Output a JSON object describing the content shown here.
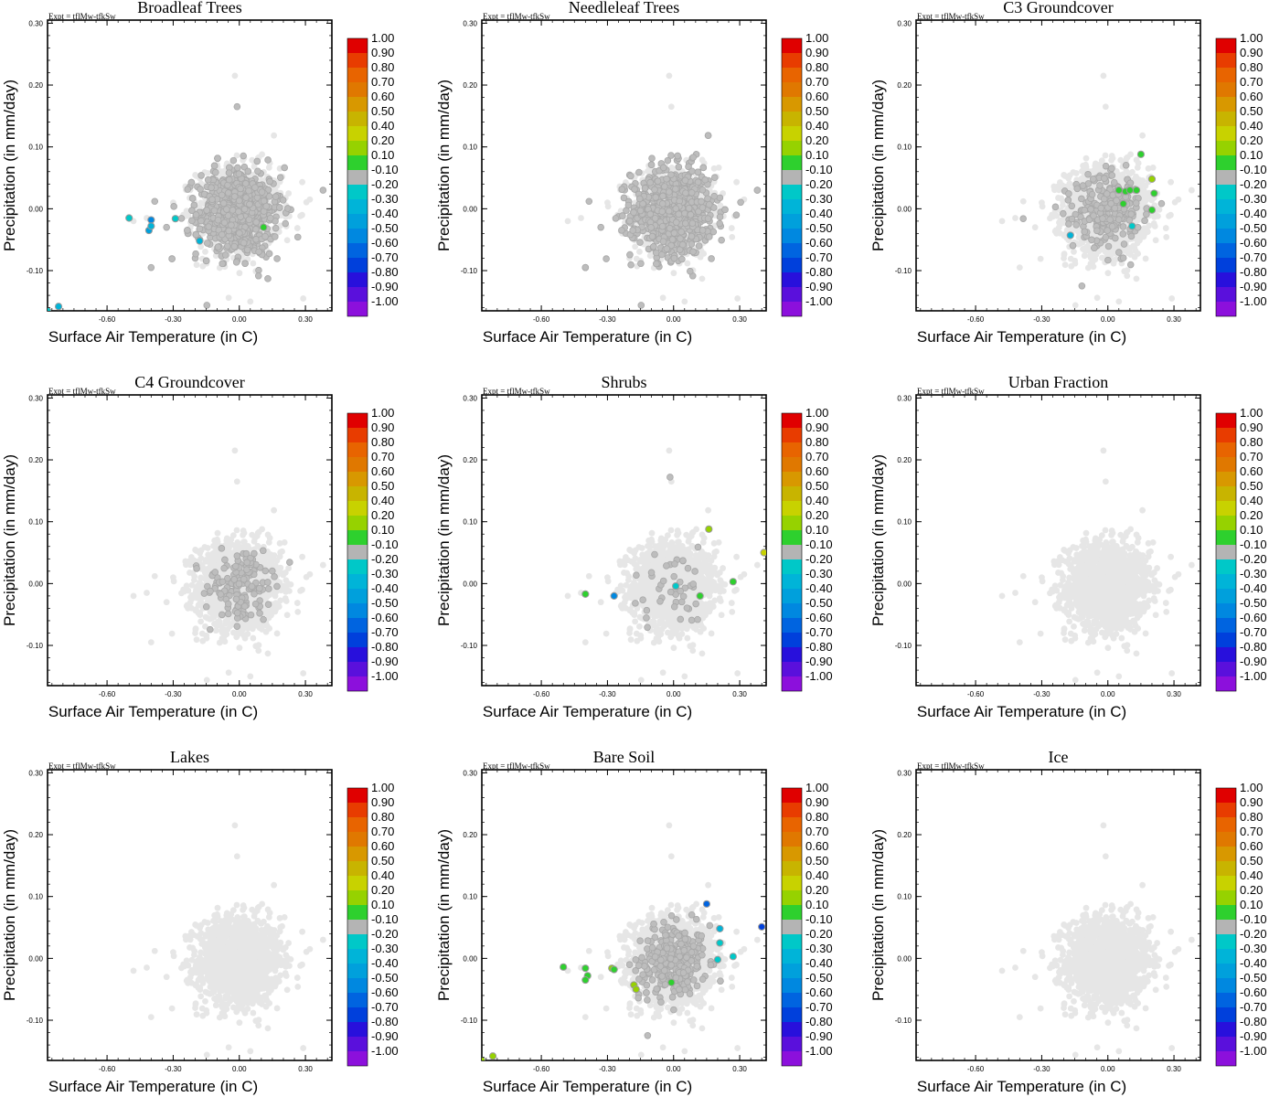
{
  "figure": {
    "expt_label": "Expt = tflMw-tfkSw",
    "xlabel": "Surface Air Temperature (in C)",
    "ylabel": "Precipitation (in mm/day)"
  },
  "colorbar": {
    "labels": [
      "1.00",
      "0.90",
      "0.80",
      "0.70",
      "0.60",
      "0.50",
      "0.40",
      "0.20",
      "0.10",
      "-0.10",
      "-0.20",
      "-0.30",
      "-0.40",
      "-0.50",
      "-0.60",
      "-0.70",
      "-0.80",
      "-0.90",
      "-1.00"
    ],
    "colors": [
      "#e00000",
      "#e83c00",
      "#e86400",
      "#e07800",
      "#d89800",
      "#c8b400",
      "#c8d200",
      "#96d200",
      "#2ed02e",
      "#b4b4b4",
      "#00c8c8",
      "#00b4d8",
      "#00a0dc",
      "#0088e0",
      "#0064e0",
      "#0040dc",
      "#2810dc",
      "#5a10dc",
      "#8c10dc"
    ]
  },
  "chart_data": [
    {
      "type": "scatter",
      "title": "Broadleaf Trees",
      "xlabel": "Surface Air Temperature (in C)",
      "ylabel": "Precipitation (in mm/day)",
      "xlim": [
        -0.87,
        0.42
      ],
      "ylim": [
        -0.165,
        0.305
      ],
      "xticks": [
        "-0.60",
        "-0.30",
        "0.00",
        "0.30"
      ],
      "yticks": [
        "0.30",
        "0.20",
        "0.10",
        "0.00",
        "-0.10"
      ],
      "background_density": "high",
      "colored_points": [
        {
          "x": -0.5,
          "y": -0.015,
          "color": "#00c8c8"
        },
        {
          "x": -0.4,
          "y": -0.018,
          "color": "#0088e0"
        },
        {
          "x": -0.41,
          "y": -0.035,
          "color": "#00a0dc"
        },
        {
          "x": -0.4,
          "y": -0.028,
          "color": "#00b4d8"
        },
        {
          "x": -0.29,
          "y": -0.016,
          "color": "#00c8c8"
        },
        {
          "x": -0.18,
          "y": -0.052,
          "color": "#00b4d8"
        },
        {
          "x": -0.82,
          "y": -0.158,
          "color": "#00b4d8"
        },
        {
          "x": -0.87,
          "y": -0.165,
          "color": "#00c8c8"
        },
        {
          "x": 0.11,
          "y": -0.03,
          "color": "#2ed02e"
        }
      ]
    },
    {
      "type": "scatter",
      "title": "Needleleaf Trees",
      "xlabel": "Surface Air Temperature (in C)",
      "ylabel": "Precipitation (in mm/day)",
      "xlim": [
        -0.87,
        0.42
      ],
      "ylim": [
        -0.165,
        0.305
      ],
      "xticks": [
        "-0.60",
        "-0.30",
        "0.00",
        "0.30"
      ],
      "yticks": [
        "0.30",
        "0.20",
        "0.10",
        "0.00",
        "-0.10"
      ],
      "background_density": "high",
      "colored_points": []
    },
    {
      "type": "scatter",
      "title": "C3 Groundcover",
      "xlabel": "Surface Air Temperature (in C)",
      "ylabel": "Precipitation (in mm/day)",
      "xlim": [
        -0.87,
        0.42
      ],
      "ylim": [
        -0.165,
        0.305
      ],
      "xticks": [
        "-0.60",
        "-0.30",
        "0.00",
        "0.30"
      ],
      "yticks": [
        "0.30",
        "0.20",
        "0.10",
        "0.00",
        "-0.10"
      ],
      "background_density": "medium",
      "colored_points": [
        {
          "x": 0.15,
          "y": 0.088,
          "color": "#2ed02e"
        },
        {
          "x": 0.2,
          "y": 0.048,
          "color": "#96d200"
        },
        {
          "x": 0.21,
          "y": 0.025,
          "color": "#2ed02e"
        },
        {
          "x": 0.05,
          "y": 0.03,
          "color": "#2ed02e"
        },
        {
          "x": 0.08,
          "y": 0.028,
          "color": "#2ed02e"
        },
        {
          "x": 0.1,
          "y": 0.03,
          "color": "#2ed02e"
        },
        {
          "x": 0.13,
          "y": 0.03,
          "color": "#2ed02e"
        },
        {
          "x": 0.07,
          "y": 0.008,
          "color": "#2ed02e"
        },
        {
          "x": 0.2,
          "y": -0.002,
          "color": "#2ed02e"
        },
        {
          "x": -0.17,
          "y": -0.043,
          "color": "#00b4d8"
        },
        {
          "x": 0.11,
          "y": -0.028,
          "color": "#00c8c8"
        }
      ]
    },
    {
      "type": "scatter",
      "title": "C4 Groundcover",
      "xlabel": "Surface Air Temperature (in C)",
      "ylabel": "Precipitation (in mm/day)",
      "xlim": [
        -0.87,
        0.42
      ],
      "ylim": [
        -0.165,
        0.305
      ],
      "xticks": [
        "-0.60",
        "-0.30",
        "0.00",
        "0.30"
      ],
      "yticks": [
        "0.30",
        "0.20",
        "0.10",
        "0.00",
        "-0.10"
      ],
      "background_density": "low",
      "colored_points": []
    },
    {
      "type": "scatter",
      "title": "Shrubs",
      "xlabel": "Surface Air Temperature (in C)",
      "ylabel": "Precipitation (in mm/day)",
      "xlim": [
        -0.87,
        0.42
      ],
      "ylim": [
        -0.165,
        0.305
      ],
      "xticks": [
        "-0.60",
        "-0.30",
        "0.00",
        "0.30"
      ],
      "yticks": [
        "0.30",
        "0.20",
        "0.10",
        "0.00",
        "-0.10"
      ],
      "background_density": "sparse",
      "colored_points": [
        {
          "x": 0.16,
          "y": 0.088,
          "color": "#96d200"
        },
        {
          "x": 0.41,
          "y": 0.05,
          "color": "#c8d200"
        },
        {
          "x": 0.27,
          "y": 0.003,
          "color": "#2ed02e"
        },
        {
          "x": -0.4,
          "y": -0.017,
          "color": "#2ed02e"
        },
        {
          "x": -0.27,
          "y": -0.02,
          "color": "#0088e0"
        },
        {
          "x": 0.01,
          "y": -0.004,
          "color": "#00c8c8"
        },
        {
          "x": 0.12,
          "y": -0.02,
          "color": "#2ed02e"
        }
      ]
    },
    {
      "type": "scatter",
      "title": "Urban Fraction",
      "xlabel": "Surface Air Temperature (in C)",
      "ylabel": "Precipitation (in mm/day)",
      "xlim": [
        -0.87,
        0.42
      ],
      "ylim": [
        -0.165,
        0.305
      ],
      "xticks": [
        "-0.60",
        "-0.30",
        "0.00",
        "0.30"
      ],
      "yticks": [
        "0.30",
        "0.20",
        "0.10",
        "0.00",
        "-0.10"
      ],
      "background_density": "none",
      "colored_points": []
    },
    {
      "type": "scatter",
      "title": "Lakes",
      "xlabel": "Surface Air Temperature (in C)",
      "ylabel": "Precipitation (in mm/day)",
      "xlim": [
        -0.87,
        0.42
      ],
      "ylim": [
        -0.165,
        0.305
      ],
      "xticks": [
        "-0.60",
        "-0.30",
        "0.00",
        "0.30"
      ],
      "yticks": [
        "0.30",
        "0.20",
        "0.10",
        "0.00",
        "-0.10"
      ],
      "background_density": "none",
      "colored_points": []
    },
    {
      "type": "scatter",
      "title": "Bare Soil",
      "xlabel": "Surface Air Temperature (in C)",
      "ylabel": "Precipitation (in mm/day)",
      "xlim": [
        -0.87,
        0.42
      ],
      "ylim": [
        -0.165,
        0.305
      ],
      "xticks": [
        "-0.60",
        "-0.30",
        "0.00",
        "0.30"
      ],
      "yticks": [
        "0.30",
        "0.20",
        "0.10",
        "0.00",
        "-0.10"
      ],
      "background_density": "medium",
      "colored_points": [
        {
          "x": 0.15,
          "y": 0.088,
          "color": "#0064e0"
        },
        {
          "x": 0.4,
          "y": 0.051,
          "color": "#0040dc"
        },
        {
          "x": 0.21,
          "y": 0.048,
          "color": "#00b4d8"
        },
        {
          "x": 0.21,
          "y": 0.025,
          "color": "#00c8c8"
        },
        {
          "x": 0.27,
          "y": 0.003,
          "color": "#00c8c8"
        },
        {
          "x": 0.2,
          "y": -0.002,
          "color": "#00c8c8"
        },
        {
          "x": -0.5,
          "y": -0.014,
          "color": "#2ed02e"
        },
        {
          "x": -0.4,
          "y": -0.016,
          "color": "#2ed02e"
        },
        {
          "x": -0.28,
          "y": -0.016,
          "color": "#96d200"
        },
        {
          "x": -0.27,
          "y": -0.018,
          "color": "#2ed02e"
        },
        {
          "x": -0.39,
          "y": -0.028,
          "color": "#2ed02e"
        },
        {
          "x": -0.4,
          "y": -0.035,
          "color": "#2ed02e"
        },
        {
          "x": -0.18,
          "y": -0.043,
          "color": "#96d200"
        },
        {
          "x": -0.17,
          "y": -0.05,
          "color": "#96d200"
        },
        {
          "x": -0.01,
          "y": -0.039,
          "color": "#2ed02e"
        },
        {
          "x": -0.82,
          "y": -0.158,
          "color": "#96d200"
        },
        {
          "x": -0.87,
          "y": -0.165,
          "color": "#96d200"
        }
      ]
    },
    {
      "type": "scatter",
      "title": "Ice",
      "xlabel": "Surface Air Temperature (in C)",
      "ylabel": "Precipitation (in mm/day)",
      "xlim": [
        -0.87,
        0.42
      ],
      "ylim": [
        -0.165,
        0.305
      ],
      "xticks": [
        "-0.60",
        "-0.30",
        "0.00",
        "0.30"
      ],
      "yticks": [
        "0.30",
        "0.20",
        "0.10",
        "0.00",
        "-0.10"
      ],
      "background_density": "none",
      "colored_points": []
    }
  ]
}
